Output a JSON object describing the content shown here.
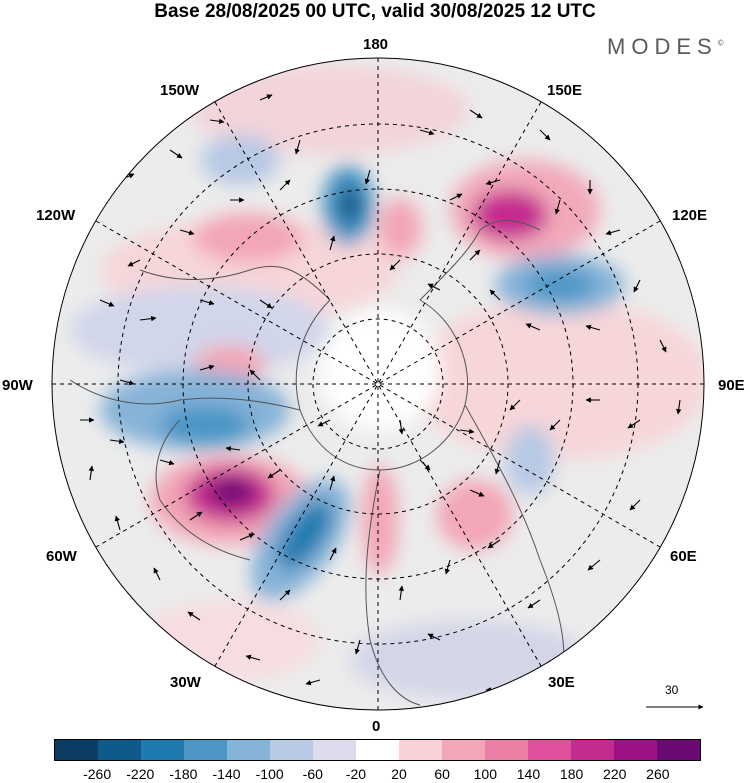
{
  "title": "Base 28/08/2025 00 UTC, valid 30/08/2025 12 UTC",
  "brand": "MODES",
  "brand_mark": "©",
  "longitude_labels": {
    "top": "180",
    "bottom": "0",
    "left": "90W",
    "right": "90E",
    "upper_left_1": "150W",
    "upper_left_2": "120W",
    "lower_left_1": "60W",
    "lower_left_2": "30W",
    "upper_right_1": "150E",
    "upper_right_2": "120E",
    "lower_right_1": "60E",
    "lower_right_2": "30E"
  },
  "wind_reference": {
    "value": "30"
  },
  "colorbar": {
    "colors": [
      "#0b3c63",
      "#0e5a8a",
      "#1f7ab0",
      "#4c96c6",
      "#86b3d8",
      "#b7c9e4",
      "#dcdcee",
      "#ffffff",
      "#f9d2d6",
      "#f3a6b6",
      "#ec7fa6",
      "#e04f9b",
      "#c42b8f",
      "#9c1283",
      "#6b0a72"
    ],
    "tick_labels": [
      "-260",
      "-220",
      "-180",
      "-140",
      "-100",
      "-60",
      "-20",
      "20",
      "60",
      "100",
      "140",
      "180",
      "220",
      "260"
    ]
  },
  "map_elements": [
    "polar-disc",
    "graticule",
    "anomaly-fills",
    "coastlines",
    "wind-vectors"
  ]
}
